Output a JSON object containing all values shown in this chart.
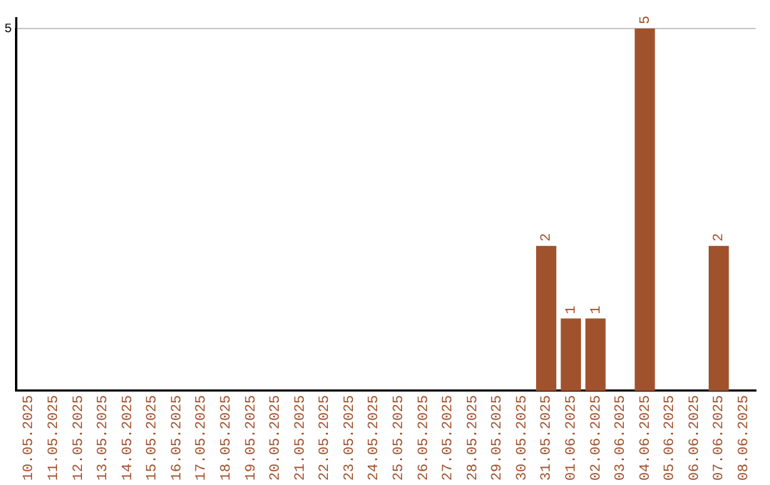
{
  "chart_data": {
    "type": "bar",
    "categories": [
      "10.05.2025",
      "11.05.2025",
      "12.05.2025",
      "13.05.2025",
      "14.05.2025",
      "15.05.2025",
      "16.05.2025",
      "17.05.2025",
      "18.05.2025",
      "19.05.2025",
      "20.05.2025",
      "21.05.2025",
      "22.05.2025",
      "23.05.2025",
      "24.05.2025",
      "25.05.2025",
      "26.05.2025",
      "27.05.2025",
      "28.05.2025",
      "29.05.2025",
      "30.05.2025",
      "31.05.2025",
      "01.06.2025",
      "02.06.2025",
      "03.06.2025",
      "04.06.2025",
      "05.06.2025",
      "06.06.2025",
      "07.06.2025",
      "08.06.2025"
    ],
    "values": [
      null,
      null,
      null,
      null,
      null,
      null,
      null,
      null,
      null,
      null,
      null,
      null,
      null,
      null,
      null,
      null,
      null,
      null,
      null,
      null,
      null,
      2,
      1,
      1,
      null,
      5,
      null,
      null,
      2,
      null
    ],
    "data_labels": true,
    "color": "#a0522d",
    "ylim": [
      0,
      5
    ],
    "yticks": [
      5
    ],
    "ref_lines": [
      {
        "axis": "y",
        "value": 5,
        "color": "#c8c8c8"
      }
    ]
  }
}
